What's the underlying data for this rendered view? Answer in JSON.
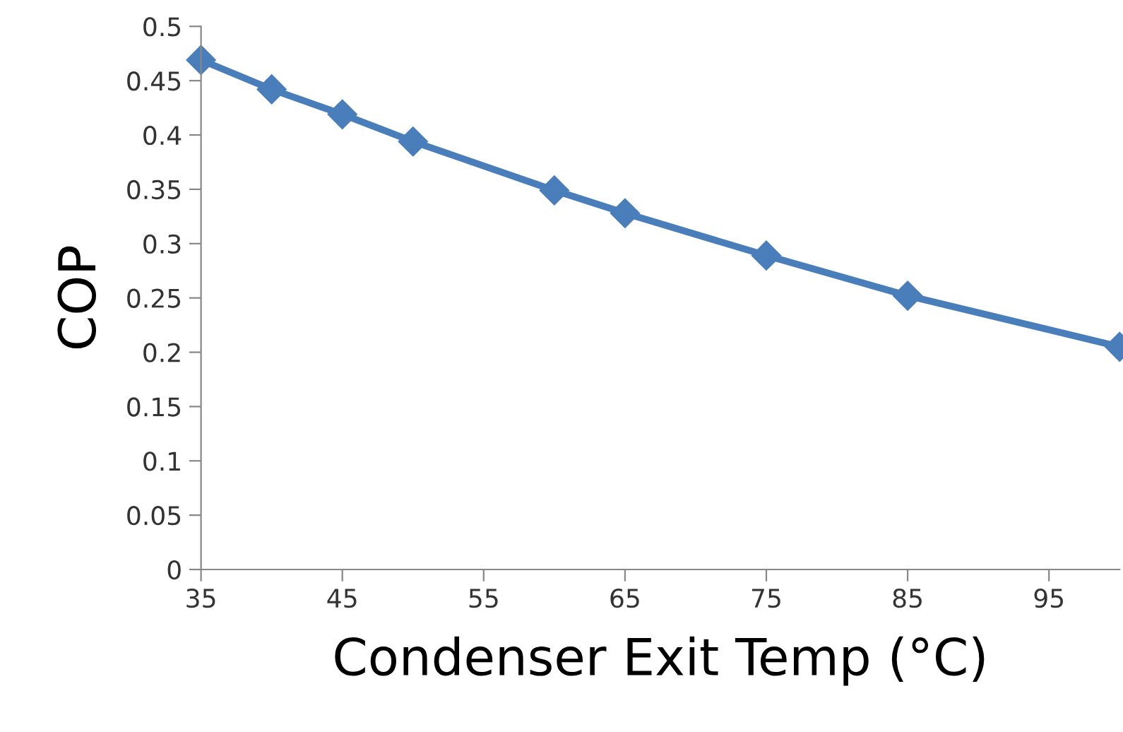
{
  "chart_data": {
    "type": "line",
    "xlabel": "Condenser Exit Temp (°C)",
    "ylabel": "COP",
    "x": [
      35,
      40,
      45,
      50,
      60,
      65,
      75,
      85,
      100
    ],
    "series": [
      {
        "color": "#4a7ebb",
        "values": [
          0.469,
          0.442,
          0.419,
          0.394,
          0.349,
          0.328,
          0.289,
          0.252,
          0.205
        ]
      }
    ],
    "xlim": [
      35,
      100
    ],
    "xticks": [
      35,
      45,
      55,
      65,
      75,
      85,
      95
    ],
    "ylim": [
      0,
      0.5
    ],
    "yticks": [
      0,
      0.05,
      0.1,
      0.15,
      0.2,
      0.25,
      0.3,
      0.35,
      0.4,
      0.45,
      0.5
    ],
    "grid": false,
    "legend": false,
    "marker": "diamond",
    "line_style": "solid"
  }
}
